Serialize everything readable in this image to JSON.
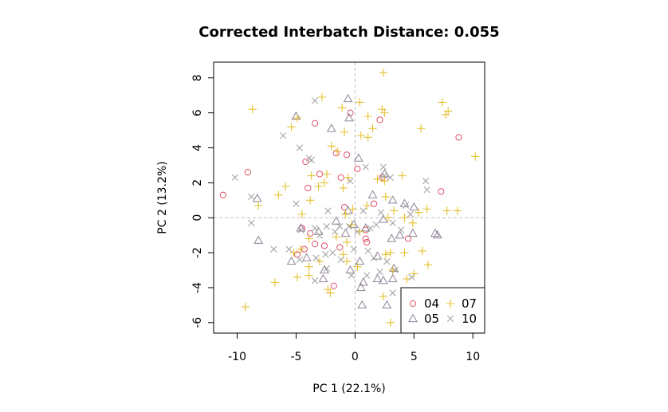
{
  "colors": {
    "04": "#DF536B",
    "05": "#8E8298",
    "07": "#E6C12F",
    "10": "#9E9E9E",
    "axis": "#000000",
    "refline": "#BEBEBE"
  },
  "chart_data": {
    "type": "scatter",
    "title": "Corrected Interbatch Distance: 0.055",
    "xlabel": "PC 1 (22.1%)",
    "ylabel": "PC 2 (13.2%)",
    "xlim": [
      -12,
      11
    ],
    "ylim": [
      -6.6,
      8.9
    ],
    "xticks": [
      -10,
      -5,
      0,
      5,
      10
    ],
    "xtick_labels": [
      "-10",
      "-5",
      "0",
      "5",
      "10"
    ],
    "yticks": [
      -6,
      -4,
      -2,
      0,
      2,
      4,
      6,
      8
    ],
    "ytick_labels": [
      "-6",
      "-4",
      "-2",
      "0",
      "2",
      "4",
      "6",
      "8"
    ],
    "reference_lines": {
      "x": 0,
      "y": 0,
      "style": "dashed"
    },
    "grid": false,
    "legend_position": "bottom-right",
    "series": [
      {
        "name": "04",
        "marker": "circle",
        "color": "#DF536B",
        "points": [
          [
            -11.2,
            1.3
          ],
          [
            -9.1,
            2.6
          ],
          [
            -3.4,
            5.4
          ],
          [
            -4.2,
            3.2
          ],
          [
            -3.0,
            2.5
          ],
          [
            -1.6,
            3.7
          ],
          [
            -0.7,
            3.6
          ],
          [
            -0.4,
            6.0
          ],
          [
            0.2,
            2.8
          ],
          [
            2.1,
            5.6
          ],
          [
            2.3,
            2.3
          ],
          [
            -4.0,
            1.7
          ],
          [
            -1.2,
            2.3
          ],
          [
            -0.9,
            0.6
          ],
          [
            1.6,
            0.8
          ],
          [
            -4.5,
            -0.6
          ],
          [
            -3.4,
            -1.5
          ],
          [
            -4.3,
            -1.8
          ],
          [
            -2.6,
            -1.6
          ],
          [
            -1.3,
            -1.7
          ],
          [
            0.9,
            -0.7
          ],
          [
            1.0,
            -1.4
          ],
          [
            -4.9,
            -2.1
          ],
          [
            -1.8,
            -3.9
          ],
          [
            4.5,
            -1.2
          ],
          [
            7.3,
            1.5
          ],
          [
            8.8,
            4.6
          ],
          [
            0.9,
            -1.2
          ],
          [
            -3.8,
            -0.9
          ]
        ]
      },
      {
        "name": "05",
        "marker": "triangle",
        "color": "#8E8298",
        "points": [
          [
            -8.3,
            1.1
          ],
          [
            -8.2,
            -1.3
          ],
          [
            -5.0,
            5.8
          ],
          [
            -2.0,
            5.1
          ],
          [
            -0.6,
            6.8
          ],
          [
            -0.5,
            5.7
          ],
          [
            0.3,
            3.4
          ],
          [
            1.5,
            1.3
          ],
          [
            2.5,
            2.5
          ],
          [
            3.2,
            1.0
          ],
          [
            4.2,
            0.8
          ],
          [
            4.9,
            -0.9
          ],
          [
            5.0,
            0.6
          ],
          [
            7.0,
            -1.0
          ],
          [
            6.8,
            -0.9
          ],
          [
            -4.6,
            -0.6
          ],
          [
            -3.1,
            -0.8
          ],
          [
            -0.8,
            -0.9
          ],
          [
            -0.1,
            -0.4
          ],
          [
            0.9,
            -0.6
          ],
          [
            2.4,
            -0.1
          ],
          [
            3.1,
            -1.2
          ],
          [
            3.8,
            -1.0
          ],
          [
            -5.4,
            -2.5
          ],
          [
            -4.1,
            -2.3
          ],
          [
            -2.6,
            -3.0
          ],
          [
            -2.7,
            -3.5
          ],
          [
            -0.4,
            -3.0
          ],
          [
            0.4,
            -2.5
          ],
          [
            0.5,
            -4.0
          ],
          [
            0.7,
            -3.7
          ],
          [
            1.9,
            -2.2
          ],
          [
            2.4,
            -3.6
          ],
          [
            3.2,
            -3.5
          ],
          [
            3.3,
            -2.9
          ],
          [
            0.6,
            -5.0
          ],
          [
            2.7,
            -5.0
          ],
          [
            -1.6,
            -0.2
          ],
          [
            -0.6,
            0.4
          ],
          [
            1.9,
            -3.5
          ]
        ]
      },
      {
        "name": "07",
        "marker": "plus",
        "color": "#E6C12F",
        "points": [
          [
            -8.7,
            6.2
          ],
          [
            -5.4,
            5.2
          ],
          [
            -4.9,
            5.7
          ],
          [
            -2.8,
            6.9
          ],
          [
            -1.1,
            6.3
          ],
          [
            0.4,
            6.6
          ],
          [
            1.1,
            5.8
          ],
          [
            2.3,
            6.2
          ],
          [
            2.5,
            6.0
          ],
          [
            2.4,
            8.3
          ],
          [
            5.6,
            5.1
          ],
          [
            7.4,
            6.6
          ],
          [
            7.7,
            5.9
          ],
          [
            7.9,
            6.1
          ],
          [
            -2.0,
            4.1
          ],
          [
            -1.5,
            3.8
          ],
          [
            -0.9,
            4.9
          ],
          [
            0.5,
            4.7
          ],
          [
            1.1,
            4.6
          ],
          [
            1.5,
            5.1
          ],
          [
            -3.7,
            2.4
          ],
          [
            -2.4,
            2.5
          ],
          [
            -2.6,
            2.0
          ],
          [
            -0.6,
            2.3
          ],
          [
            1.9,
            2.2
          ],
          [
            2.5,
            2.1
          ],
          [
            4.0,
            2.4
          ],
          [
            10.2,
            3.5
          ],
          [
            -9.3,
            -5.1
          ],
          [
            -8.2,
            0.7
          ],
          [
            -6.5,
            1.3
          ],
          [
            -5.9,
            1.8
          ],
          [
            -4.5,
            0.2
          ],
          [
            -3.8,
            1.0
          ],
          [
            -3.1,
            1.8
          ],
          [
            -1.0,
            1.7
          ],
          [
            1.0,
            0.7
          ],
          [
            2.6,
            1.2
          ],
          [
            2.8,
            0.0
          ],
          [
            3.3,
            0.4
          ],
          [
            4.2,
            0.0
          ],
          [
            4.9,
            -0.3
          ],
          [
            5.4,
            0.3
          ],
          [
            6.1,
            0.5
          ],
          [
            7.8,
            0.4
          ],
          [
            8.7,
            0.4
          ],
          [
            -0.2,
            0.5
          ],
          [
            -0.8,
            0.2
          ],
          [
            -0.3,
            -0.4
          ],
          [
            0.4,
            -0.8
          ],
          [
            -3.9,
            -1.2
          ],
          [
            -1.6,
            -1.1
          ],
          [
            -0.7,
            -1.4
          ],
          [
            -4.6,
            -1.8
          ],
          [
            -5.2,
            -2.0
          ],
          [
            -6.8,
            -3.7
          ],
          [
            -4.9,
            -3.4
          ],
          [
            -3.9,
            -2.8
          ],
          [
            -3.9,
            -3.3
          ],
          [
            -3.0,
            -2.5
          ],
          [
            -1.0,
            -2.1
          ],
          [
            -0.7,
            -2.5
          ],
          [
            0.2,
            -2.8
          ],
          [
            2.6,
            -2.1
          ],
          [
            3.0,
            -2.0
          ],
          [
            3.2,
            -3.0
          ],
          [
            4.2,
            -2.0
          ],
          [
            5.7,
            -1.9
          ],
          [
            6.2,
            -2.7
          ],
          [
            4.4,
            -3.5
          ],
          [
            -2.1,
            -4.3
          ],
          [
            -2.3,
            -4.1
          ],
          [
            2.4,
            -4.5
          ],
          [
            3.0,
            -6.0
          ],
          [
            5.0,
            -3.2
          ]
        ]
      },
      {
        "name": "10",
        "marker": "x",
        "color": "#9E9E9E",
        "points": [
          [
            -6.1,
            4.7
          ],
          [
            -3.4,
            6.7
          ],
          [
            -4.7,
            4.0
          ],
          [
            -3.9,
            3.4
          ],
          [
            -3.7,
            3.3
          ],
          [
            -2.3,
            0.4
          ],
          [
            -0.4,
            2.1
          ],
          [
            0.9,
            2.9
          ],
          [
            2.4,
            2.9
          ],
          [
            2.5,
            2.4
          ],
          [
            3.0,
            2.3
          ],
          [
            -8.8,
            1.2
          ],
          [
            -10.2,
            2.3
          ],
          [
            -8.8,
            -0.3
          ],
          [
            -6.9,
            -1.8
          ],
          [
            -5.0,
            0.8
          ],
          [
            -4.6,
            -0.7
          ],
          [
            -3.4,
            -0.6
          ],
          [
            -3.0,
            -1.0
          ],
          [
            -2.4,
            -0.5
          ],
          [
            -1.7,
            -0.8
          ],
          [
            -1.3,
            -0.5
          ],
          [
            -0.5,
            -0.5
          ],
          [
            0.2,
            -0.8
          ],
          [
            0.7,
            0.4
          ],
          [
            1.3,
            -0.6
          ],
          [
            1.8,
            -0.4
          ],
          [
            2.2,
            0.3
          ],
          [
            3.2,
            -0.3
          ],
          [
            3.9,
            -0.7
          ],
          [
            4.3,
            0.7
          ],
          [
            4.7,
            0.2
          ],
          [
            6.0,
            2.1
          ],
          [
            6.1,
            1.6
          ],
          [
            -5.6,
            -1.8
          ],
          [
            -4.7,
            -2.4
          ],
          [
            -3.3,
            -2.3
          ],
          [
            -2.5,
            -2.1
          ],
          [
            -1.9,
            -2.0
          ],
          [
            -1.2,
            -2.4
          ],
          [
            -0.3,
            -3.3
          ],
          [
            -0.1,
            -1.8
          ],
          [
            1.1,
            -1.9
          ],
          [
            1.6,
            -2.3
          ],
          [
            2.1,
            -3.1
          ],
          [
            2.7,
            -2.5
          ],
          [
            3.4,
            -3.0
          ],
          [
            4.8,
            -3.4
          ],
          [
            -3.4,
            -3.6
          ],
          [
            -2.4,
            -2.9
          ],
          [
            1.0,
            -3.3
          ],
          [
            3.2,
            -4.3
          ]
        ]
      }
    ]
  }
}
